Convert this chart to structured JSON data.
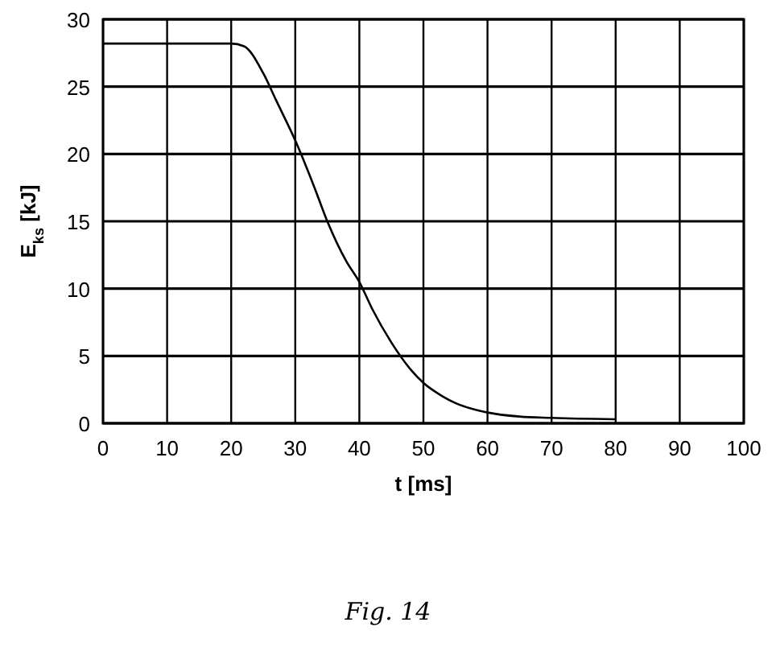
{
  "chart_data": {
    "type": "line",
    "xlabel": "t [ms]",
    "ylabel": "E$_{ks}$ [kJ]",
    "annotations": [
      "Fig. 14"
    ],
    "x": [
      0,
      10,
      20,
      22,
      25,
      27,
      30,
      33,
      35,
      38,
      40,
      42,
      45,
      48,
      50,
      53,
      55,
      60,
      65,
      70,
      80
    ],
    "series": [
      {
        "color": "#000000",
        "values": [
          28.2,
          28.2,
          28.2,
          28,
          26,
          24,
          21,
          17.5,
          15,
          12,
          10.5,
          8.5,
          6,
          4,
          3,
          2,
          1.5,
          0.8,
          0.5,
          0.4,
          0.3
        ]
      }
    ],
    "xlim": [
      0,
      100
    ],
    "ylim": [
      0,
      30
    ],
    "xticks": [
      0,
      10,
      20,
      30,
      40,
      50,
      60,
      70,
      80,
      90,
      100
    ],
    "yticks": [
      0,
      5,
      10,
      15,
      20,
      25,
      30
    ],
    "grid": true,
    "marker": "none",
    "line_style": "solid"
  }
}
